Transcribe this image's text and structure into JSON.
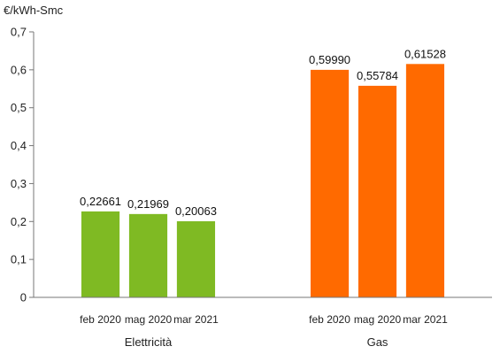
{
  "chart_data": {
    "type": "bar",
    "ylabel": "€/kWh-Smc",
    "ylim": [
      0,
      0.7
    ],
    "y_ticks": [
      {
        "value": 0,
        "label": "0"
      },
      {
        "value": 0.1,
        "label": "0,1"
      },
      {
        "value": 0.2,
        "label": "0,2"
      },
      {
        "value": 0.3,
        "label": "0,3"
      },
      {
        "value": 0.4,
        "label": "0,4"
      },
      {
        "value": 0.5,
        "label": "0,5"
      },
      {
        "value": 0.6,
        "label": "0,6"
      },
      {
        "value": 0.7,
        "label": "0,7"
      }
    ],
    "grid": false,
    "legend": "none",
    "groups": [
      {
        "name": "Elettricità",
        "color": "#7fba23",
        "categories": [
          "feb 2020",
          "mag 2020",
          "mar 2021"
        ],
        "values": [
          0.22661,
          0.21969,
          0.20063
        ],
        "value_labels": [
          "0,22661",
          "0,21969",
          "0,20063"
        ]
      },
      {
        "name": "Gas",
        "color": "#ff6a00",
        "categories": [
          "feb 2020",
          "mag 2020",
          "mar 2021"
        ],
        "values": [
          0.5999,
          0.55784,
          0.61528
        ],
        "value_labels": [
          "0,59990",
          "0,55784",
          "0,61528"
        ]
      }
    ]
  }
}
